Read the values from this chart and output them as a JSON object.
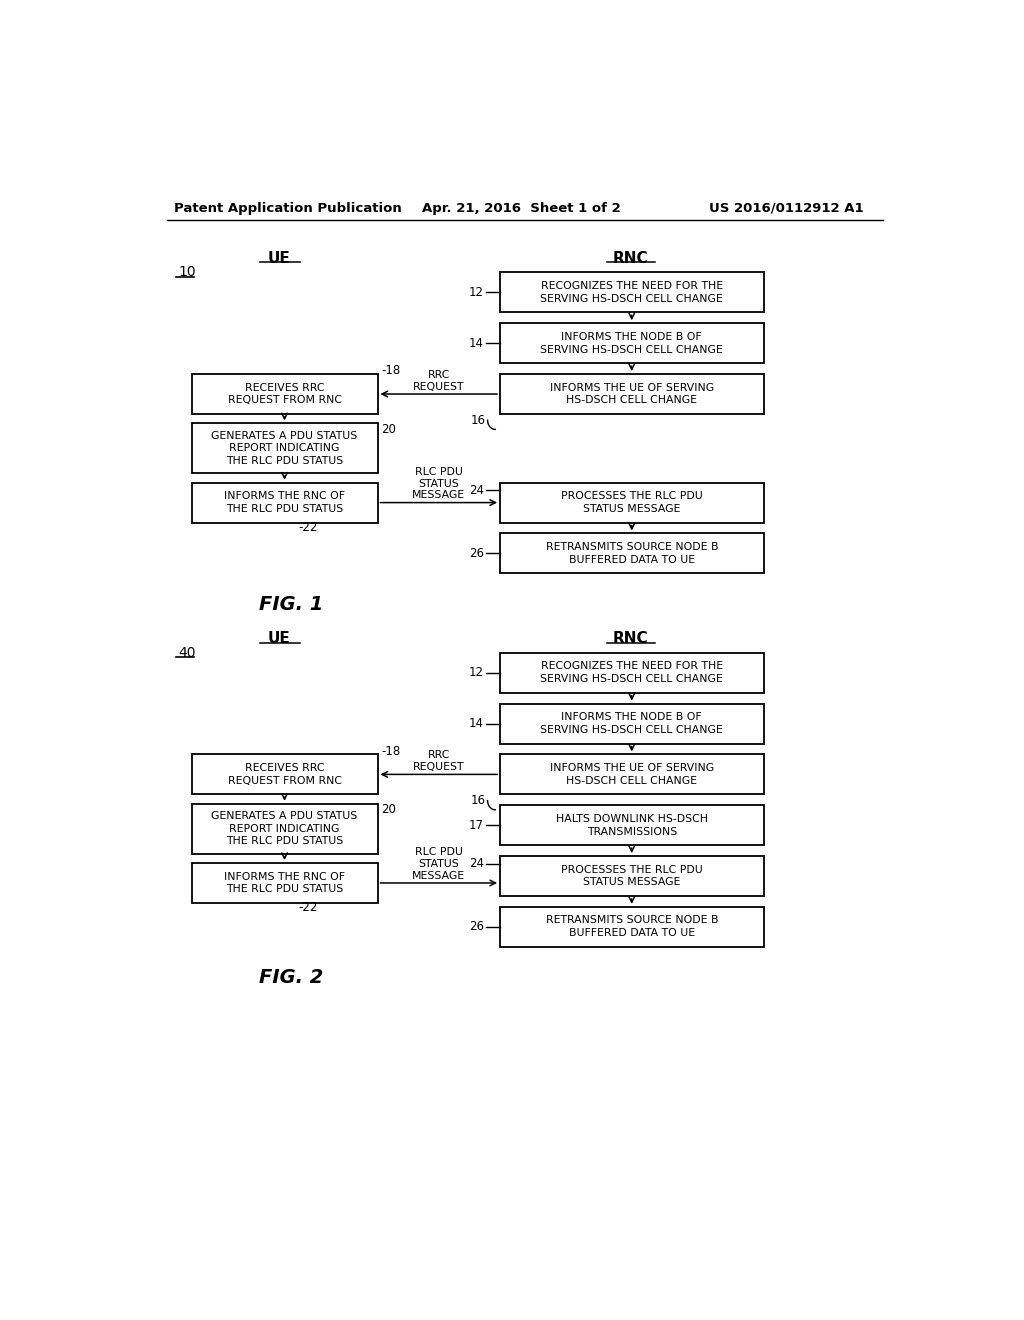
{
  "bg_color": "#ffffff",
  "header_left": "Patent Application Publication",
  "header_mid": "Apr. 21, 2016  Sheet 1 of 2",
  "header_right": "US 2016/0112912 A1",
  "fig1_label": "FIG. 1",
  "fig2_label": "FIG. 2",
  "ue_label": "UE",
  "rnc_label": "RNC",
  "fig1_num": "10",
  "fig2_num": "40"
}
